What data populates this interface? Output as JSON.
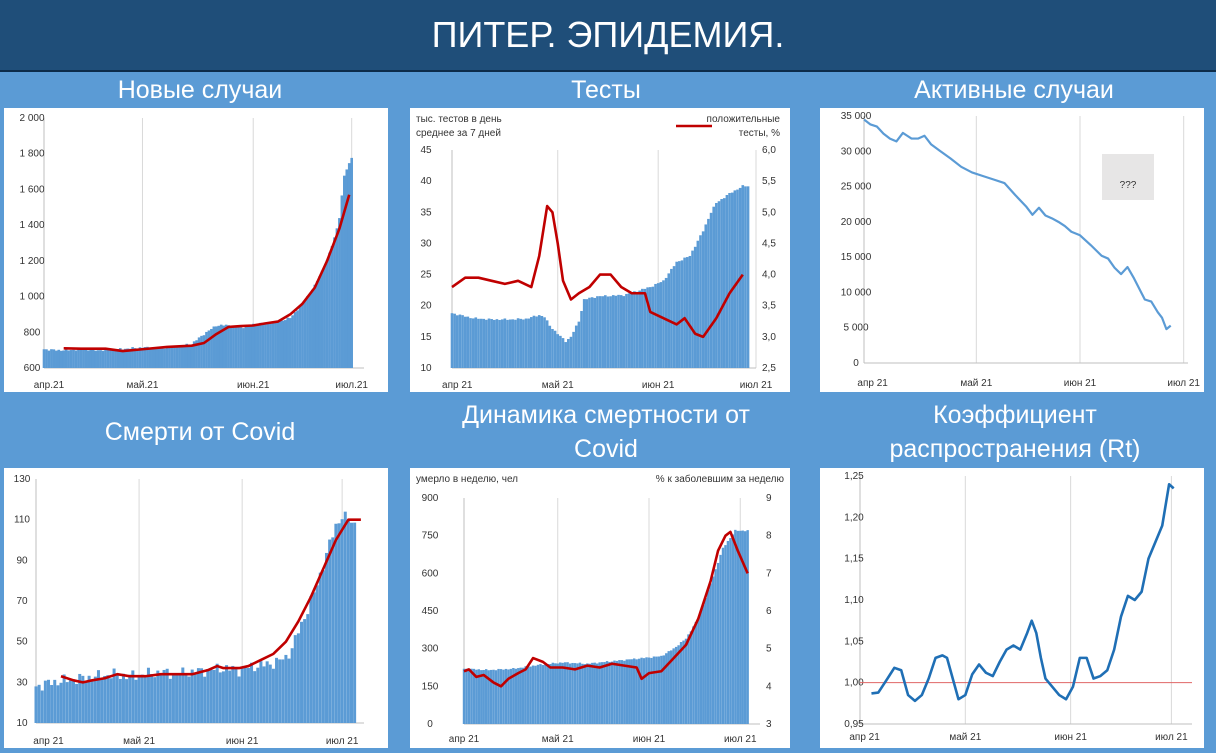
{
  "header": {
    "title": "ПИТЕР. ЭПИДЕМИЯ."
  },
  "colors": {
    "bar": "#5b9bd5",
    "line": "#c00000",
    "rline": "#e06666",
    "header_bg": "#1f4e79",
    "panel_bg": "#5b9bd5",
    "question_bg": "#e7e6e6"
  },
  "chart_data": [
    {
      "title": "Новые случаи",
      "type": "bar+line",
      "ylim": [
        600,
        2000
      ],
      "yticks": [
        "600",
        "800",
        "1 000",
        "1 200",
        "1 400",
        "1 600",
        "1 800",
        "2 000"
      ],
      "xticks": [
        "апр.21",
        "май.21",
        "июн.21",
        "июл.21"
      ],
      "bars_ctrl": [
        [
          0,
          705
        ],
        [
          5,
          700
        ],
        [
          10,
          700
        ],
        [
          15,
          705
        ],
        [
          20,
          700
        ],
        [
          25,
          700
        ],
        [
          30,
          705
        ],
        [
          40,
          715
        ],
        [
          50,
          712
        ],
        [
          60,
          735
        ],
        [
          65,
          790
        ],
        [
          70,
          838
        ],
        [
          75,
          840
        ],
        [
          80,
          825
        ],
        [
          85,
          845
        ],
        [
          90,
          850
        ],
        [
          95,
          860
        ],
        [
          100,
          880
        ],
        [
          105,
          960
        ],
        [
          110,
          1060
        ],
        [
          115,
          1200
        ],
        [
          118,
          1330
        ],
        [
          120,
          1440
        ],
        [
          122,
          1680
        ],
        [
          125,
          1780
        ]
      ],
      "bar_days": [
        0,
        125
      ],
      "line_ctrl": [
        [
          8,
          710
        ],
        [
          15,
          708
        ],
        [
          25,
          708
        ],
        [
          32,
          695
        ],
        [
          40,
          705
        ],
        [
          50,
          718
        ],
        [
          60,
          725
        ],
        [
          65,
          740
        ],
        [
          70,
          790
        ],
        [
          75,
          830
        ],
        [
          80,
          835
        ],
        [
          85,
          838
        ],
        [
          90,
          850
        ],
        [
          95,
          860
        ],
        [
          100,
          900
        ],
        [
          105,
          960
        ],
        [
          110,
          1050
        ],
        [
          115,
          1200
        ],
        [
          120,
          1380
        ],
        [
          124,
          1570
        ]
      ],
      "ygrid": false
    },
    {
      "title": "Тесты",
      "type": "bar+line dual-axis",
      "ylabel_left": [
        "тыс. тестов в день",
        "среднее за 7 дней"
      ],
      "ylabel_right": [
        "положительные",
        "тесты, %"
      ],
      "ylim": [
        10,
        45
      ],
      "y2lim": [
        2.5,
        6.0
      ],
      "yticks": [
        "10",
        "15",
        "20",
        "25",
        "30",
        "35",
        "40",
        "45"
      ],
      "y2ticks": [
        "2,5",
        "3,0",
        "3,5",
        "4,0",
        "4,5",
        "5,0",
        "5,5",
        "6,0"
      ],
      "xticks": [
        "апр 21",
        "май 21",
        "июн 21",
        "июл 21"
      ],
      "bars_ctrl": [
        [
          0,
          18.8
        ],
        [
          8,
          18
        ],
        [
          15,
          17.8
        ],
        [
          22,
          17.8
        ],
        [
          28,
          17.9
        ],
        [
          33,
          18.5
        ],
        [
          35,
          18.2
        ],
        [
          37,
          16.8
        ],
        [
          40,
          15.5
        ],
        [
          43,
          14.3
        ],
        [
          45,
          15
        ],
        [
          48,
          17.5
        ],
        [
          50,
          21
        ],
        [
          55,
          21.5
        ],
        [
          65,
          21.7
        ],
        [
          75,
          23
        ],
        [
          80,
          24
        ],
        [
          85,
          27
        ],
        [
          90,
          28
        ],
        [
          95,
          32
        ],
        [
          98,
          35
        ],
        [
          100,
          36.5
        ],
        [
          105,
          38
        ],
        [
          110,
          39.2
        ],
        [
          112,
          39.2
        ]
      ],
      "bar_days": [
        0,
        112
      ],
      "line_ctrl": [
        [
          0,
          3.8
        ],
        [
          5,
          3.95
        ],
        [
          10,
          3.95
        ],
        [
          15,
          3.9
        ],
        [
          20,
          3.85
        ],
        [
          25,
          3.9
        ],
        [
          30,
          3.8
        ],
        [
          33,
          4.3
        ],
        [
          36,
          5.1
        ],
        [
          38,
          5.0
        ],
        [
          40,
          4.5
        ],
        [
          42,
          3.9
        ],
        [
          45,
          3.6
        ],
        [
          48,
          3.7
        ],
        [
          52,
          3.8
        ],
        [
          56,
          4.0
        ],
        [
          60,
          4.0
        ],
        [
          64,
          3.8
        ],
        [
          68,
          3.7
        ],
        [
          73,
          3.7
        ],
        [
          75,
          3.4
        ],
        [
          80,
          3.3
        ],
        [
          85,
          3.2
        ],
        [
          88,
          3.3
        ],
        [
          92,
          3.05
        ],
        [
          95,
          3.0
        ],
        [
          100,
          3.3
        ],
        [
          105,
          3.7
        ],
        [
          110,
          4.0
        ]
      ]
    },
    {
      "title": "Активные случаи",
      "type": "line",
      "ylim": [
        0,
        35000
      ],
      "yticks": [
        "0",
        "5 000",
        "10 000",
        "15 000",
        "20 000",
        "25 000",
        "30 000",
        "35 000"
      ],
      "xticks": [
        "апр 21",
        "май 21",
        "июн 21",
        "июл 21"
      ],
      "line_ctrl": [
        [
          0,
          34500
        ],
        [
          3,
          33800
        ],
        [
          6,
          33500
        ],
        [
          9,
          32500
        ],
        [
          12,
          31800
        ],
        [
          15,
          31400
        ],
        [
          18,
          32600
        ],
        [
          20,
          32200
        ],
        [
          22,
          31800
        ],
        [
          25,
          31800
        ],
        [
          28,
          32200
        ],
        [
          31,
          31000
        ],
        [
          35,
          30100
        ],
        [
          40,
          29000
        ],
        [
          45,
          27800
        ],
        [
          50,
          27000
        ],
        [
          55,
          26500
        ],
        [
          60,
          26000
        ],
        [
          65,
          25500
        ],
        [
          70,
          23800
        ],
        [
          75,
          22200
        ],
        [
          78,
          21000
        ],
        [
          81,
          22000
        ],
        [
          84,
          20900
        ],
        [
          87,
          20500
        ],
        [
          90,
          20000
        ],
        [
          93,
          19400
        ],
        [
          96,
          18600
        ],
        [
          100,
          18100
        ],
        [
          105,
          16700
        ],
        [
          110,
          15200
        ],
        [
          113,
          14800
        ],
        [
          116,
          13500
        ],
        [
          119,
          12600
        ],
        [
          122,
          13600
        ],
        [
          125,
          12000
        ],
        [
          130,
          9000
        ],
        [
          133,
          8700
        ],
        [
          136,
          7200
        ],
        [
          138,
          6400
        ],
        [
          140,
          4800
        ],
        [
          142,
          5300
        ]
      ],
      "annotation": "???"
    },
    {
      "title": "Смерти от Covid",
      "type": "bar+line",
      "ylim": [
        10,
        130
      ],
      "yticks": [
        "10",
        "30",
        "50",
        "70",
        "90",
        "110",
        "130"
      ],
      "xticks": [
        "апр 21",
        "май 21",
        "июн 21",
        "июл 21"
      ],
      "bars_ctrl": [
        [
          0,
          28
        ],
        [
          5,
          30
        ],
        [
          10,
          31
        ],
        [
          15,
          32
        ],
        [
          20,
          33
        ],
        [
          25,
          34
        ],
        [
          30,
          33
        ],
        [
          35,
          34
        ],
        [
          40,
          35
        ],
        [
          45,
          34
        ],
        [
          50,
          35
        ],
        [
          55,
          36
        ],
        [
          60,
          37
        ],
        [
          65,
          36
        ],
        [
          70,
          38
        ],
        [
          75,
          39
        ],
        [
          80,
          42
        ],
        [
          82,
          47
        ],
        [
          84,
          55
        ],
        [
          86,
          62
        ],
        [
          88,
          70
        ],
        [
          90,
          78
        ],
        [
          92,
          88
        ],
        [
          94,
          98
        ],
        [
          96,
          107
        ],
        [
          98,
          112
        ],
        [
          100,
          110
        ],
        [
          102,
          108
        ]
      ],
      "bar_days": [
        0,
        102
      ],
      "line_ctrl": [
        [
          8,
          33
        ],
        [
          12,
          31
        ],
        [
          15,
          30
        ],
        [
          18,
          31
        ],
        [
          22,
          32
        ],
        [
          26,
          34
        ],
        [
          30,
          33
        ],
        [
          35,
          33
        ],
        [
          40,
          34
        ],
        [
          45,
          34
        ],
        [
          50,
          34
        ],
        [
          55,
          36
        ],
        [
          58,
          38
        ],
        [
          60,
          37
        ],
        [
          62,
          37
        ],
        [
          65,
          37
        ],
        [
          68,
          38
        ],
        [
          72,
          41
        ],
        [
          76,
          44
        ],
        [
          80,
          50
        ],
        [
          84,
          60
        ],
        [
          88,
          72
        ],
        [
          92,
          86
        ],
        [
          96,
          100
        ],
        [
          100,
          110
        ],
        [
          104,
          110
        ]
      ]
    },
    {
      "title": "Динамика смертности от Covid",
      "type": "bar+line dual-axis",
      "ylabel_left": [
        "умерло в неделю, чел"
      ],
      "ylabel_right": [
        "% к заболевшим за неделю"
      ],
      "ylim": [
        0,
        900
      ],
      "y2lim": [
        3,
        9
      ],
      "yticks": [
        "0",
        "150",
        "300",
        "450",
        "600",
        "750",
        "900"
      ],
      "y2ticks": [
        "3",
        "4",
        "5",
        "6",
        "7",
        "8",
        "9"
      ],
      "xticks": [
        "апр 21",
        "май 21",
        "июн 21",
        "июл 21"
      ],
      "bars_ctrl": [
        [
          0,
          220
        ],
        [
          10,
          215
        ],
        [
          20,
          220
        ],
        [
          30,
          235
        ],
        [
          40,
          245
        ],
        [
          50,
          240
        ],
        [
          60,
          250
        ],
        [
          70,
          260
        ],
        [
          80,
          270
        ],
        [
          85,
          300
        ],
        [
          90,
          340
        ],
        [
          95,
          420
        ],
        [
          100,
          560
        ],
        [
          105,
          700
        ],
        [
          110,
          770
        ],
        [
          115,
          770
        ]
      ],
      "bar_days": [
        0,
        115
      ],
      "line_ctrl": [
        [
          0,
          4.4
        ],
        [
          2,
          4.45
        ],
        [
          5,
          4.25
        ],
        [
          8,
          4.3
        ],
        [
          12,
          4.1
        ],
        [
          15,
          4.0
        ],
        [
          18,
          4.2
        ],
        [
          22,
          4.35
        ],
        [
          25,
          4.45
        ],
        [
          28,
          4.75
        ],
        [
          32,
          4.65
        ],
        [
          35,
          4.5
        ],
        [
          40,
          4.5
        ],
        [
          45,
          4.45
        ],
        [
          50,
          4.55
        ],
        [
          55,
          4.5
        ],
        [
          60,
          4.6
        ],
        [
          65,
          4.55
        ],
        [
          70,
          4.5
        ],
        [
          72,
          4.2
        ],
        [
          75,
          4.35
        ],
        [
          80,
          4.4
        ],
        [
          85,
          4.75
        ],
        [
          90,
          5.1
        ],
        [
          95,
          5.8
        ],
        [
          100,
          6.8
        ],
        [
          103,
          7.6
        ],
        [
          106,
          8.0
        ],
        [
          108,
          8.1
        ],
        [
          111,
          7.6
        ],
        [
          113,
          7.3
        ],
        [
          115,
          7.0
        ]
      ]
    },
    {
      "title": "Коэффициент распространения (Rt)",
      "type": "line",
      "ylim": [
        0.95,
        1.25
      ],
      "yticks": [
        "0,95",
        "1,00",
        "1,05",
        "1,10",
        "1,15",
        "1,20",
        "1,25"
      ],
      "xticks": [
        "апр 21",
        "май 21",
        "июн 21",
        "июл 21"
      ],
      "reference_line": 1.0,
      "line_ctrl": [
        [
          5,
          0.987
        ],
        [
          8,
          0.988
        ],
        [
          12,
          1.005
        ],
        [
          15,
          1.018
        ],
        [
          18,
          1.015
        ],
        [
          21,
          0.985
        ],
        [
          24,
          0.978
        ],
        [
          27,
          0.985
        ],
        [
          30,
          1.005
        ],
        [
          33,
          1.03
        ],
        [
          36,
          1.033
        ],
        [
          38,
          1.03
        ],
        [
          40,
          1.01
        ],
        [
          43,
          0.98
        ],
        [
          46,
          0.985
        ],
        [
          49,
          1.01
        ],
        [
          52,
          1.022
        ],
        [
          55,
          1.012
        ],
        [
          58,
          1.008
        ],
        [
          61,
          1.025
        ],
        [
          64,
          1.04
        ],
        [
          67,
          1.045
        ],
        [
          70,
          1.04
        ],
        [
          73,
          1.06
        ],
        [
          75,
          1.075
        ],
        [
          77,
          1.06
        ],
        [
          79,
          1.03
        ],
        [
          81,
          1.005
        ],
        [
          84,
          0.995
        ],
        [
          87,
          0.985
        ],
        [
          90,
          0.98
        ],
        [
          93,
          0.995
        ],
        [
          96,
          1.03
        ],
        [
          99,
          1.03
        ],
        [
          102,
          1.005
        ],
        [
          105,
          1.008
        ],
        [
          108,
          1.015
        ],
        [
          111,
          1.04
        ],
        [
          114,
          1.08
        ],
        [
          117,
          1.105
        ],
        [
          120,
          1.1
        ],
        [
          123,
          1.11
        ],
        [
          126,
          1.15
        ],
        [
          129,
          1.17
        ],
        [
          132,
          1.19
        ],
        [
          135,
          1.24
        ],
        [
          137,
          1.235
        ]
      ]
    }
  ]
}
